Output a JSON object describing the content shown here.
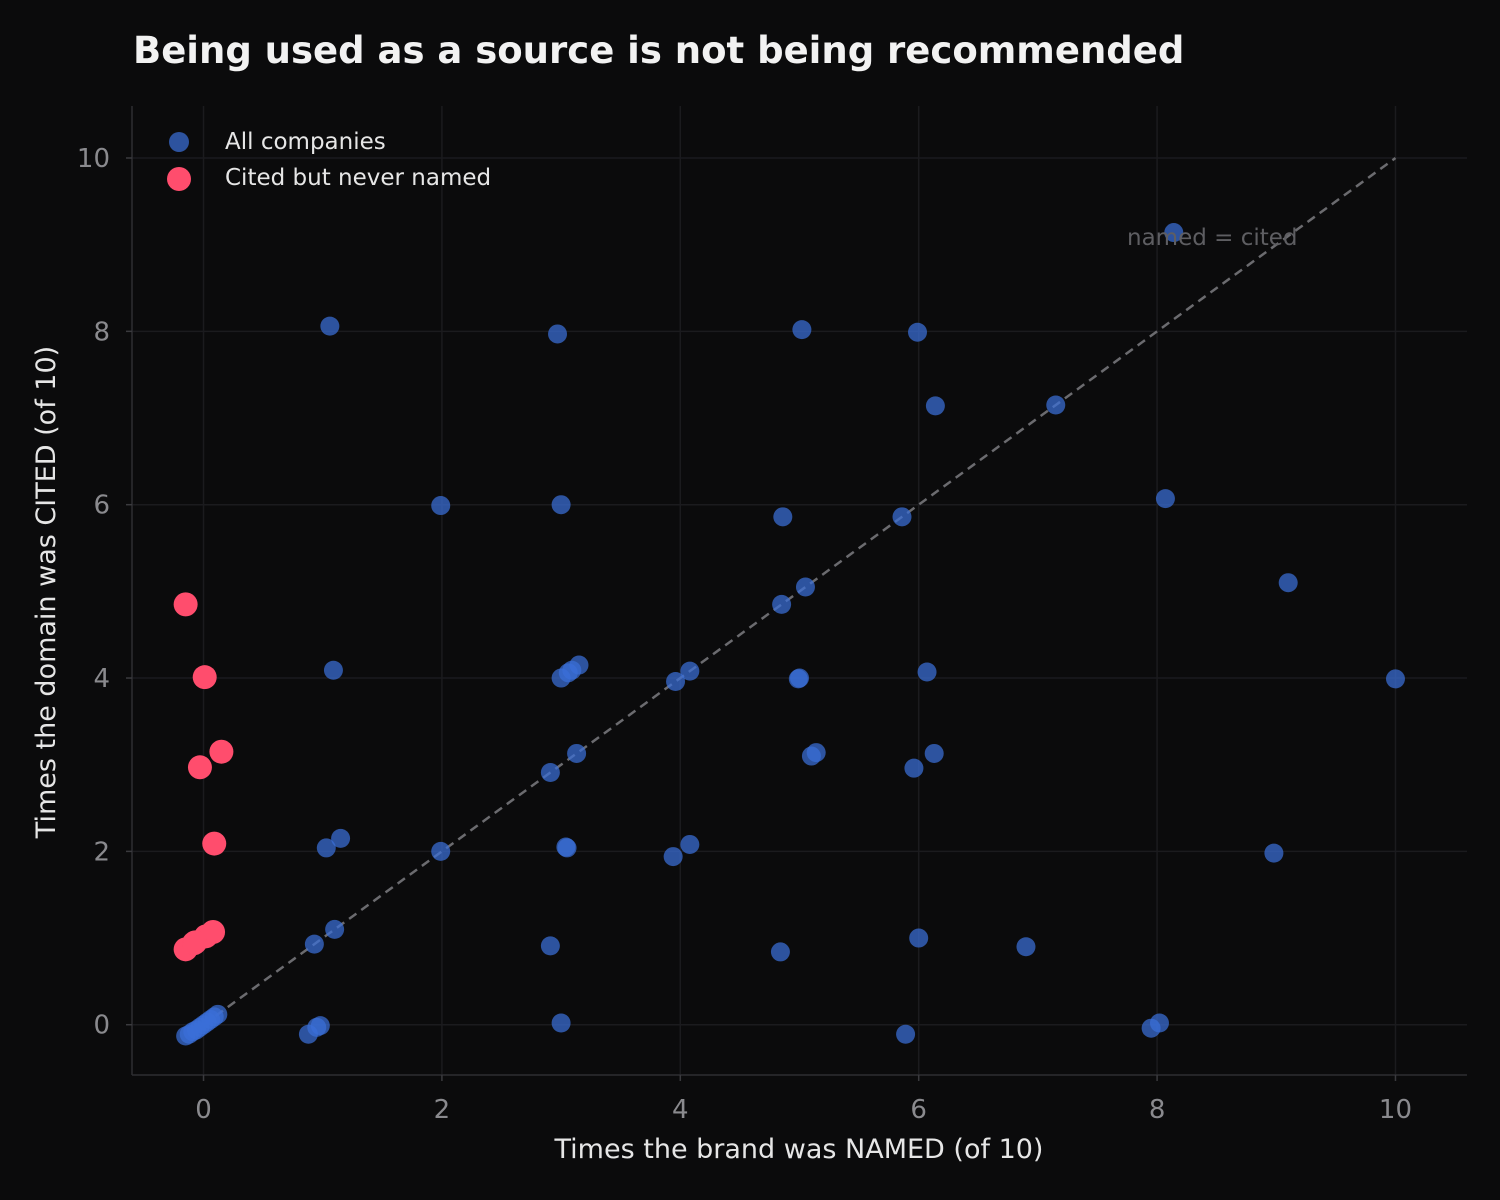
{
  "chart_data": {
    "type": "scatter",
    "title": "Being used as a source is not being recommended",
    "xlabel": "Times the brand was NAMED (of 10)",
    "ylabel": "Times the domain was CITED (of 10)",
    "xlim": [
      -0.6,
      10.6
    ],
    "ylim": [
      -0.58,
      10.6
    ],
    "xticks": [
      0,
      2,
      4,
      6,
      8,
      10
    ],
    "yticks": [
      0,
      2,
      4,
      6,
      8,
      10
    ],
    "grid": true,
    "legend_position": "top-left",
    "annotation": "named = cited",
    "reference_line": [
      [
        0,
        0
      ],
      [
        10,
        10
      ]
    ],
    "colors": {
      "all": "#3a6fd8",
      "highlight": "#ff4d6d",
      "background": "#0b0b0c",
      "reference": "#6b6b6f"
    },
    "series": [
      {
        "name": "All companies",
        "points": [
          [
            -0.15,
            -0.13
          ],
          [
            -0.12,
            -0.11
          ],
          [
            -0.09,
            -0.08
          ],
          [
            -0.06,
            -0.06
          ],
          [
            -0.03,
            -0.03
          ],
          [
            0.0,
            0.0
          ],
          [
            0.03,
            0.03
          ],
          [
            0.06,
            0.06
          ],
          [
            0.09,
            0.09
          ],
          [
            0.12,
            0.12
          ],
          [
            0.88,
            -0.11
          ],
          [
            0.95,
            -0.03
          ],
          [
            0.98,
            -0.01
          ],
          [
            0.93,
            0.93
          ],
          [
            1.1,
            1.1
          ],
          [
            1.03,
            2.04
          ],
          [
            1.15,
            2.15
          ],
          [
            1.09,
            4.09
          ],
          [
            1.06,
            8.06
          ],
          [
            1.99,
            5.99
          ],
          [
            1.99,
            2.0
          ],
          [
            2.91,
            2.91
          ],
          [
            2.91,
            0.91
          ],
          [
            3.0,
            0.02
          ],
          [
            3.04,
            2.05
          ],
          [
            3.05,
            2.04
          ],
          [
            3.13,
            3.13
          ],
          [
            3.0,
            4.0
          ],
          [
            3.06,
            4.06
          ],
          [
            3.09,
            4.09
          ],
          [
            3.15,
            4.15
          ],
          [
            3.0,
            6.0
          ],
          [
            2.97,
            7.97
          ],
          [
            3.94,
            1.94
          ],
          [
            4.08,
            2.08
          ],
          [
            3.96,
            3.96
          ],
          [
            4.08,
            4.08
          ],
          [
            4.84,
            0.84
          ],
          [
            4.85,
            4.85
          ],
          [
            4.99,
            3.99
          ],
          [
            5.0,
            4.0
          ],
          [
            5.05,
            5.05
          ],
          [
            4.86,
            5.86
          ],
          [
            5.1,
            3.1
          ],
          [
            5.14,
            3.14
          ],
          [
            5.02,
            8.02
          ],
          [
            5.89,
            -0.11
          ],
          [
            6.0,
            1.0
          ],
          [
            5.96,
            2.96
          ],
          [
            6.13,
            3.13
          ],
          [
            6.07,
            4.07
          ],
          [
            5.86,
            5.86
          ],
          [
            6.14,
            7.14
          ],
          [
            5.99,
            7.99
          ],
          [
            6.9,
            0.9
          ],
          [
            7.15,
            7.15
          ],
          [
            7.95,
            -0.04
          ],
          [
            8.02,
            0.02
          ],
          [
            8.07,
            6.07
          ],
          [
            8.14,
            9.14
          ],
          [
            8.98,
            1.98
          ],
          [
            9.1,
            5.1
          ],
          [
            10.0,
            3.99
          ]
        ]
      },
      {
        "name": "Cited but never named",
        "points": [
          [
            -0.15,
            4.85
          ],
          [
            0.01,
            4.01
          ],
          [
            0.15,
            3.15
          ],
          [
            -0.03,
            2.97
          ],
          [
            0.09,
            2.09
          ],
          [
            -0.15,
            0.87
          ],
          [
            -0.08,
            0.94
          ],
          [
            0.02,
            1.02
          ],
          [
            0.08,
            1.07
          ],
          [
            -0.07,
            0.95
          ]
        ]
      }
    ]
  }
}
